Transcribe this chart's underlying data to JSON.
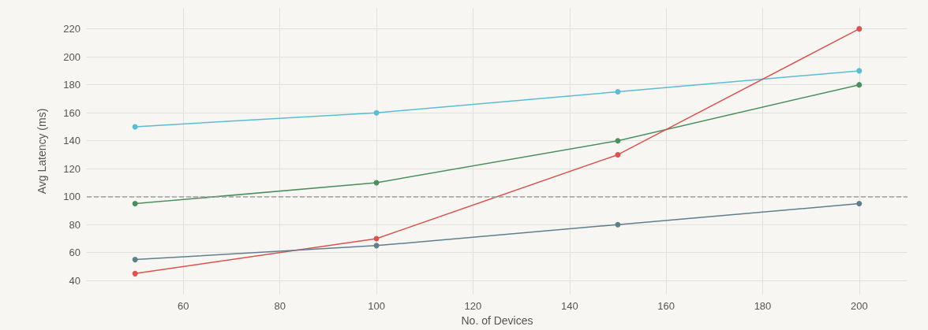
{
  "chart_data": {
    "type": "line",
    "xlabel": "No. of Devices",
    "ylabel": "Avg Latency (ms)",
    "x": [
      50,
      100,
      150,
      200
    ],
    "series": [
      {
        "color": "#5bbcd4",
        "values": [
          150,
          160,
          175,
          190
        ]
      },
      {
        "color": "#4c8f5f",
        "values": [
          95,
          110,
          140,
          180
        ]
      },
      {
        "color": "#d9534f",
        "values": [
          45,
          70,
          130,
          220
        ]
      },
      {
        "color": "#5f7f8b",
        "values": [
          55,
          65,
          80,
          95
        ]
      }
    ],
    "xlim": [
      40,
      210
    ],
    "xticks": [
      60,
      80,
      100,
      120,
      140,
      160,
      180,
      200
    ],
    "ylim": [
      30,
      235
    ],
    "yticks": [
      40,
      60,
      80,
      100,
      120,
      140,
      160,
      180,
      200,
      220
    ],
    "ref_lines": [
      {
        "axis": "y",
        "value": 100,
        "color": "#a0a0a0",
        "line_style": "dashed"
      }
    ],
    "grid": true,
    "marker": "circle",
    "line_style": "solid"
  }
}
